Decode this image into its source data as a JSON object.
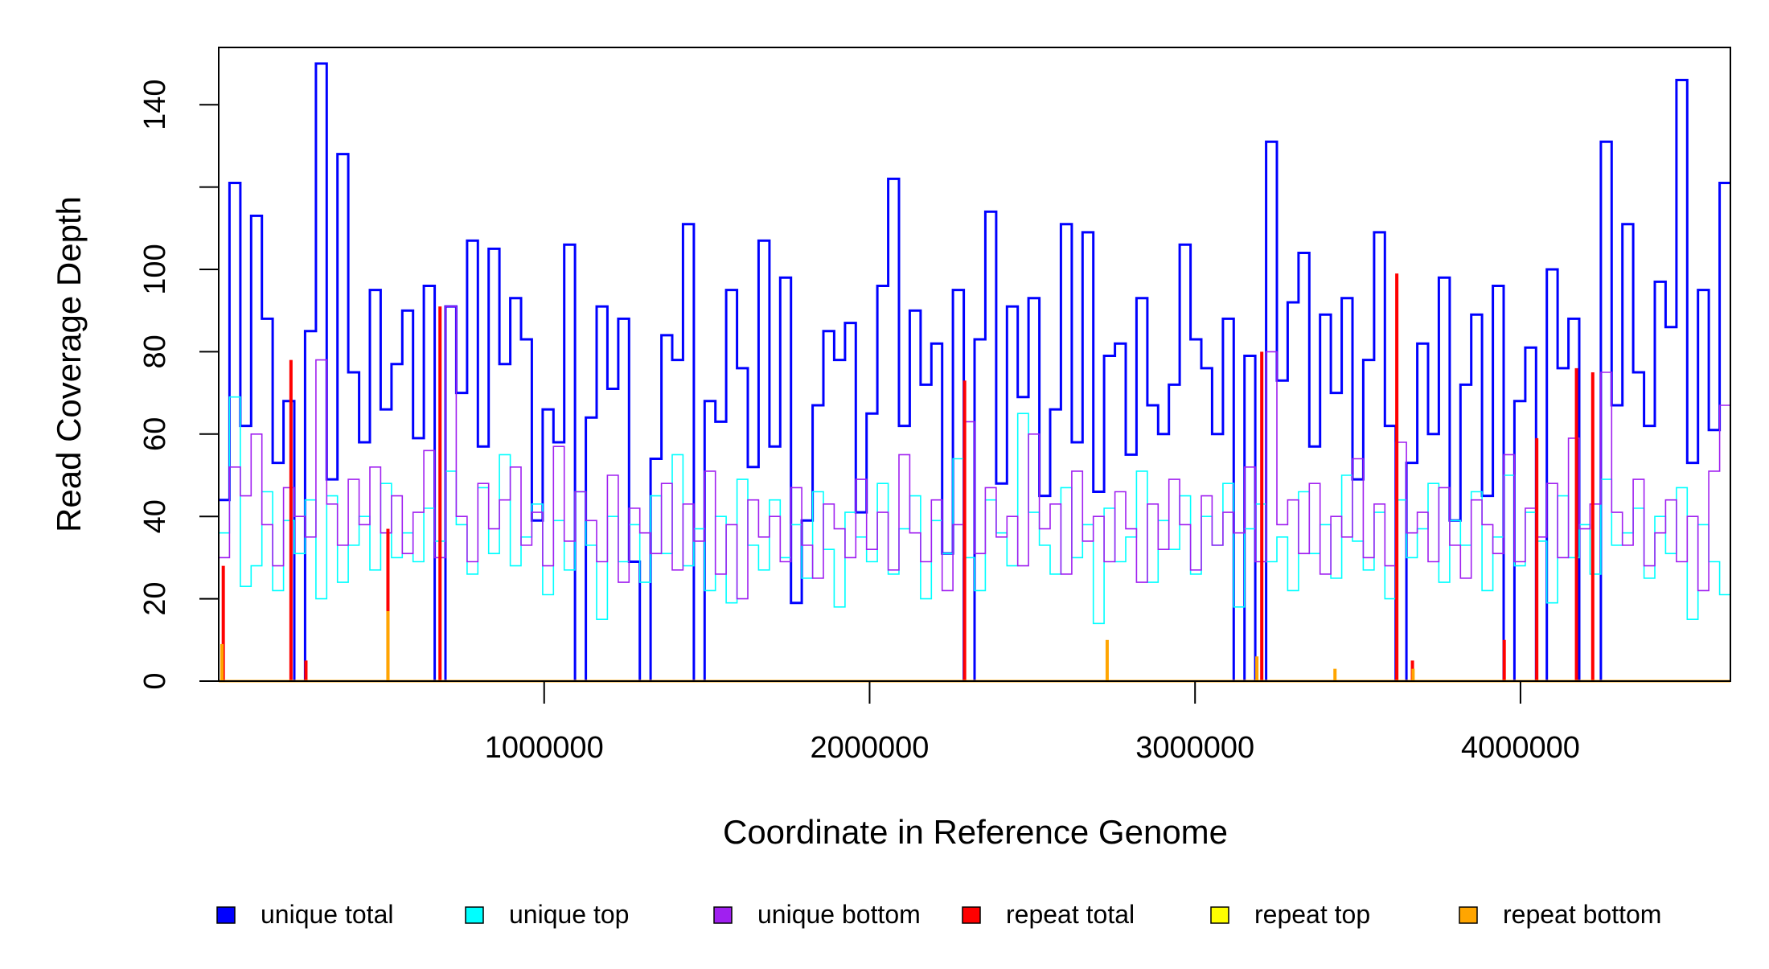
{
  "chart_data": {
    "type": "line",
    "title": "",
    "xlabel": "Coordinate in Reference Genome",
    "ylabel": "Read Coverage Depth",
    "xlim": [
      0,
      4645000
    ],
    "ylim": [
      0,
      155
    ],
    "x_ticks": [
      1000000,
      2000000,
      3000000,
      4000000
    ],
    "x_tick_labels": [
      "1000000",
      "2000000",
      "3000000",
      "4000000"
    ],
    "y_ticks": [
      0,
      20,
      40,
      60,
      80,
      100,
      120,
      140
    ],
    "y_tick_labels": [
      "0",
      "20",
      "40",
      "60",
      "80",
      "100",
      "",
      "140"
    ],
    "grid": false,
    "legend_placement": "bottom",
    "legend": [
      {
        "label": "unique total",
        "color": "#0000ff"
      },
      {
        "label": "unique top",
        "color": "#00ffff"
      },
      {
        "label": "unique bottom",
        "color": "#a020f0"
      },
      {
        "label": "repeat total",
        "color": "#ff0000"
      },
      {
        "label": "repeat top",
        "color": "#ffff00"
      },
      {
        "label": "repeat bottom",
        "color": "#ffa500"
      }
    ],
    "series": [
      {
        "name": "unique total",
        "color": "#0000ff",
        "values": [
          44,
          121,
          62,
          113,
          88,
          53,
          68,
          0,
          85,
          150,
          49,
          128,
          75,
          58,
          95,
          66,
          77,
          90,
          59,
          96,
          0,
          91,
          70,
          107,
          57,
          105,
          77,
          93,
          83,
          39,
          66,
          58,
          106,
          0,
          64,
          91,
          71,
          88,
          29,
          0,
          54,
          84,
          78,
          111,
          0,
          68,
          63,
          95,
          76,
          52,
          107,
          57,
          98,
          19,
          39,
          67,
          85,
          78,
          87,
          41,
          65,
          96,
          122,
          62,
          90,
          72,
          82,
          31,
          95,
          0,
          83,
          114,
          48,
          91,
          69,
          93,
          45,
          66,
          111,
          58,
          109,
          46,
          79,
          82,
          55,
          93,
          67,
          60,
          72,
          106,
          83,
          76,
          60,
          88,
          0,
          79,
          0,
          131,
          73,
          92,
          104,
          57,
          89,
          70,
          93,
          49,
          78,
          109,
          62,
          0,
          53,
          82,
          60,
          98,
          39,
          72,
          89,
          45,
          96,
          0,
          68,
          81,
          0,
          100,
          76,
          88,
          0,
          0,
          131,
          67,
          111,
          75,
          62,
          97,
          86,
          146,
          53,
          95,
          61,
          121
        ]
      },
      {
        "name": "unique top",
        "color": "#00ffff",
        "values": [
          36,
          69,
          23,
          28,
          46,
          22,
          39,
          31,
          44,
          20,
          45,
          24,
          33,
          40,
          27,
          48,
          30,
          36,
          29,
          42,
          34,
          51,
          38,
          26,
          47,
          31,
          55,
          28,
          35,
          43,
          21,
          39,
          27,
          46,
          33,
          15,
          40,
          29,
          38,
          24,
          45,
          31,
          55,
          28,
          37,
          22,
          40,
          19,
          49,
          33,
          27,
          44,
          30,
          38,
          25,
          46,
          32,
          18,
          41,
          35,
          29,
          48,
          26,
          37,
          45,
          20,
          39,
          31,
          54,
          30,
          22,
          44,
          36,
          28,
          65,
          41,
          33,
          26,
          47,
          30,
          38,
          14,
          42,
          29,
          35,
          51,
          24,
          39,
          32,
          45,
          26,
          40,
          33,
          48,
          18,
          37,
          43,
          29,
          35,
          22,
          46,
          31,
          38,
          25,
          50,
          34,
          27,
          41,
          20,
          44,
          30,
          37,
          48,
          24,
          39,
          33,
          46,
          22,
          35,
          50,
          28,
          41,
          34,
          19,
          45,
          30,
          38,
          26,
          49,
          33,
          36,
          42,
          25,
          40,
          31,
          47,
          15,
          38,
          29,
          21
        ]
      },
      {
        "name": "unique bottom",
        "color": "#a020f0",
        "values": [
          30,
          52,
          45,
          60,
          38,
          28,
          47,
          40,
          35,
          78,
          43,
          33,
          49,
          38,
          52,
          36,
          45,
          31,
          41,
          56,
          30,
          91,
          40,
          29,
          48,
          37,
          44,
          52,
          33,
          41,
          28,
          57,
          34,
          46,
          39,
          29,
          50,
          24,
          42,
          36,
          31,
          48,
          27,
          43,
          34,
          51,
          26,
          38,
          20,
          44,
          35,
          40,
          29,
          47,
          33,
          25,
          43,
          37,
          30,
          49,
          32,
          41,
          27,
          55,
          36,
          29,
          44,
          22,
          38,
          63,
          31,
          47,
          35,
          40,
          28,
          60,
          37,
          43,
          26,
          51,
          34,
          40,
          29,
          46,
          37,
          24,
          43,
          32,
          49,
          38,
          27,
          45,
          33,
          41,
          36,
          52,
          29,
          80,
          38,
          44,
          31,
          48,
          26,
          40,
          35,
          54,
          30,
          43,
          28,
          58,
          36,
          41,
          29,
          47,
          33,
          25,
          44,
          38,
          31,
          55,
          29,
          42,
          35,
          48,
          30,
          59,
          37,
          43,
          75,
          41,
          33,
          49,
          28,
          36,
          44,
          29,
          40,
          22,
          51,
          67
        ]
      }
    ],
    "spike_series": [
      {
        "name": "repeat total",
        "color": "#ff0000",
        "points": [
          [
            14000,
            28
          ],
          [
            222000,
            78
          ],
          [
            268000,
            5
          ],
          [
            520000,
            37
          ],
          [
            680000,
            91
          ],
          [
            2292000,
            73
          ],
          [
            3205000,
            80
          ],
          [
            3620000,
            99
          ],
          [
            3668000,
            5
          ],
          [
            3950000,
            10
          ],
          [
            4050000,
            59
          ],
          [
            4172000,
            76
          ],
          [
            4222000,
            75
          ]
        ]
      },
      {
        "name": "repeat top",
        "color": "#ffff00",
        "points": []
      },
      {
        "name": "repeat bottom",
        "color": "#ffa500",
        "points": [
          [
            10000,
            9
          ],
          [
            520000,
            17
          ],
          [
            2730000,
            10
          ],
          [
            3190000,
            6
          ],
          [
            3430000,
            3
          ],
          [
            3670000,
            3
          ]
        ]
      }
    ]
  }
}
